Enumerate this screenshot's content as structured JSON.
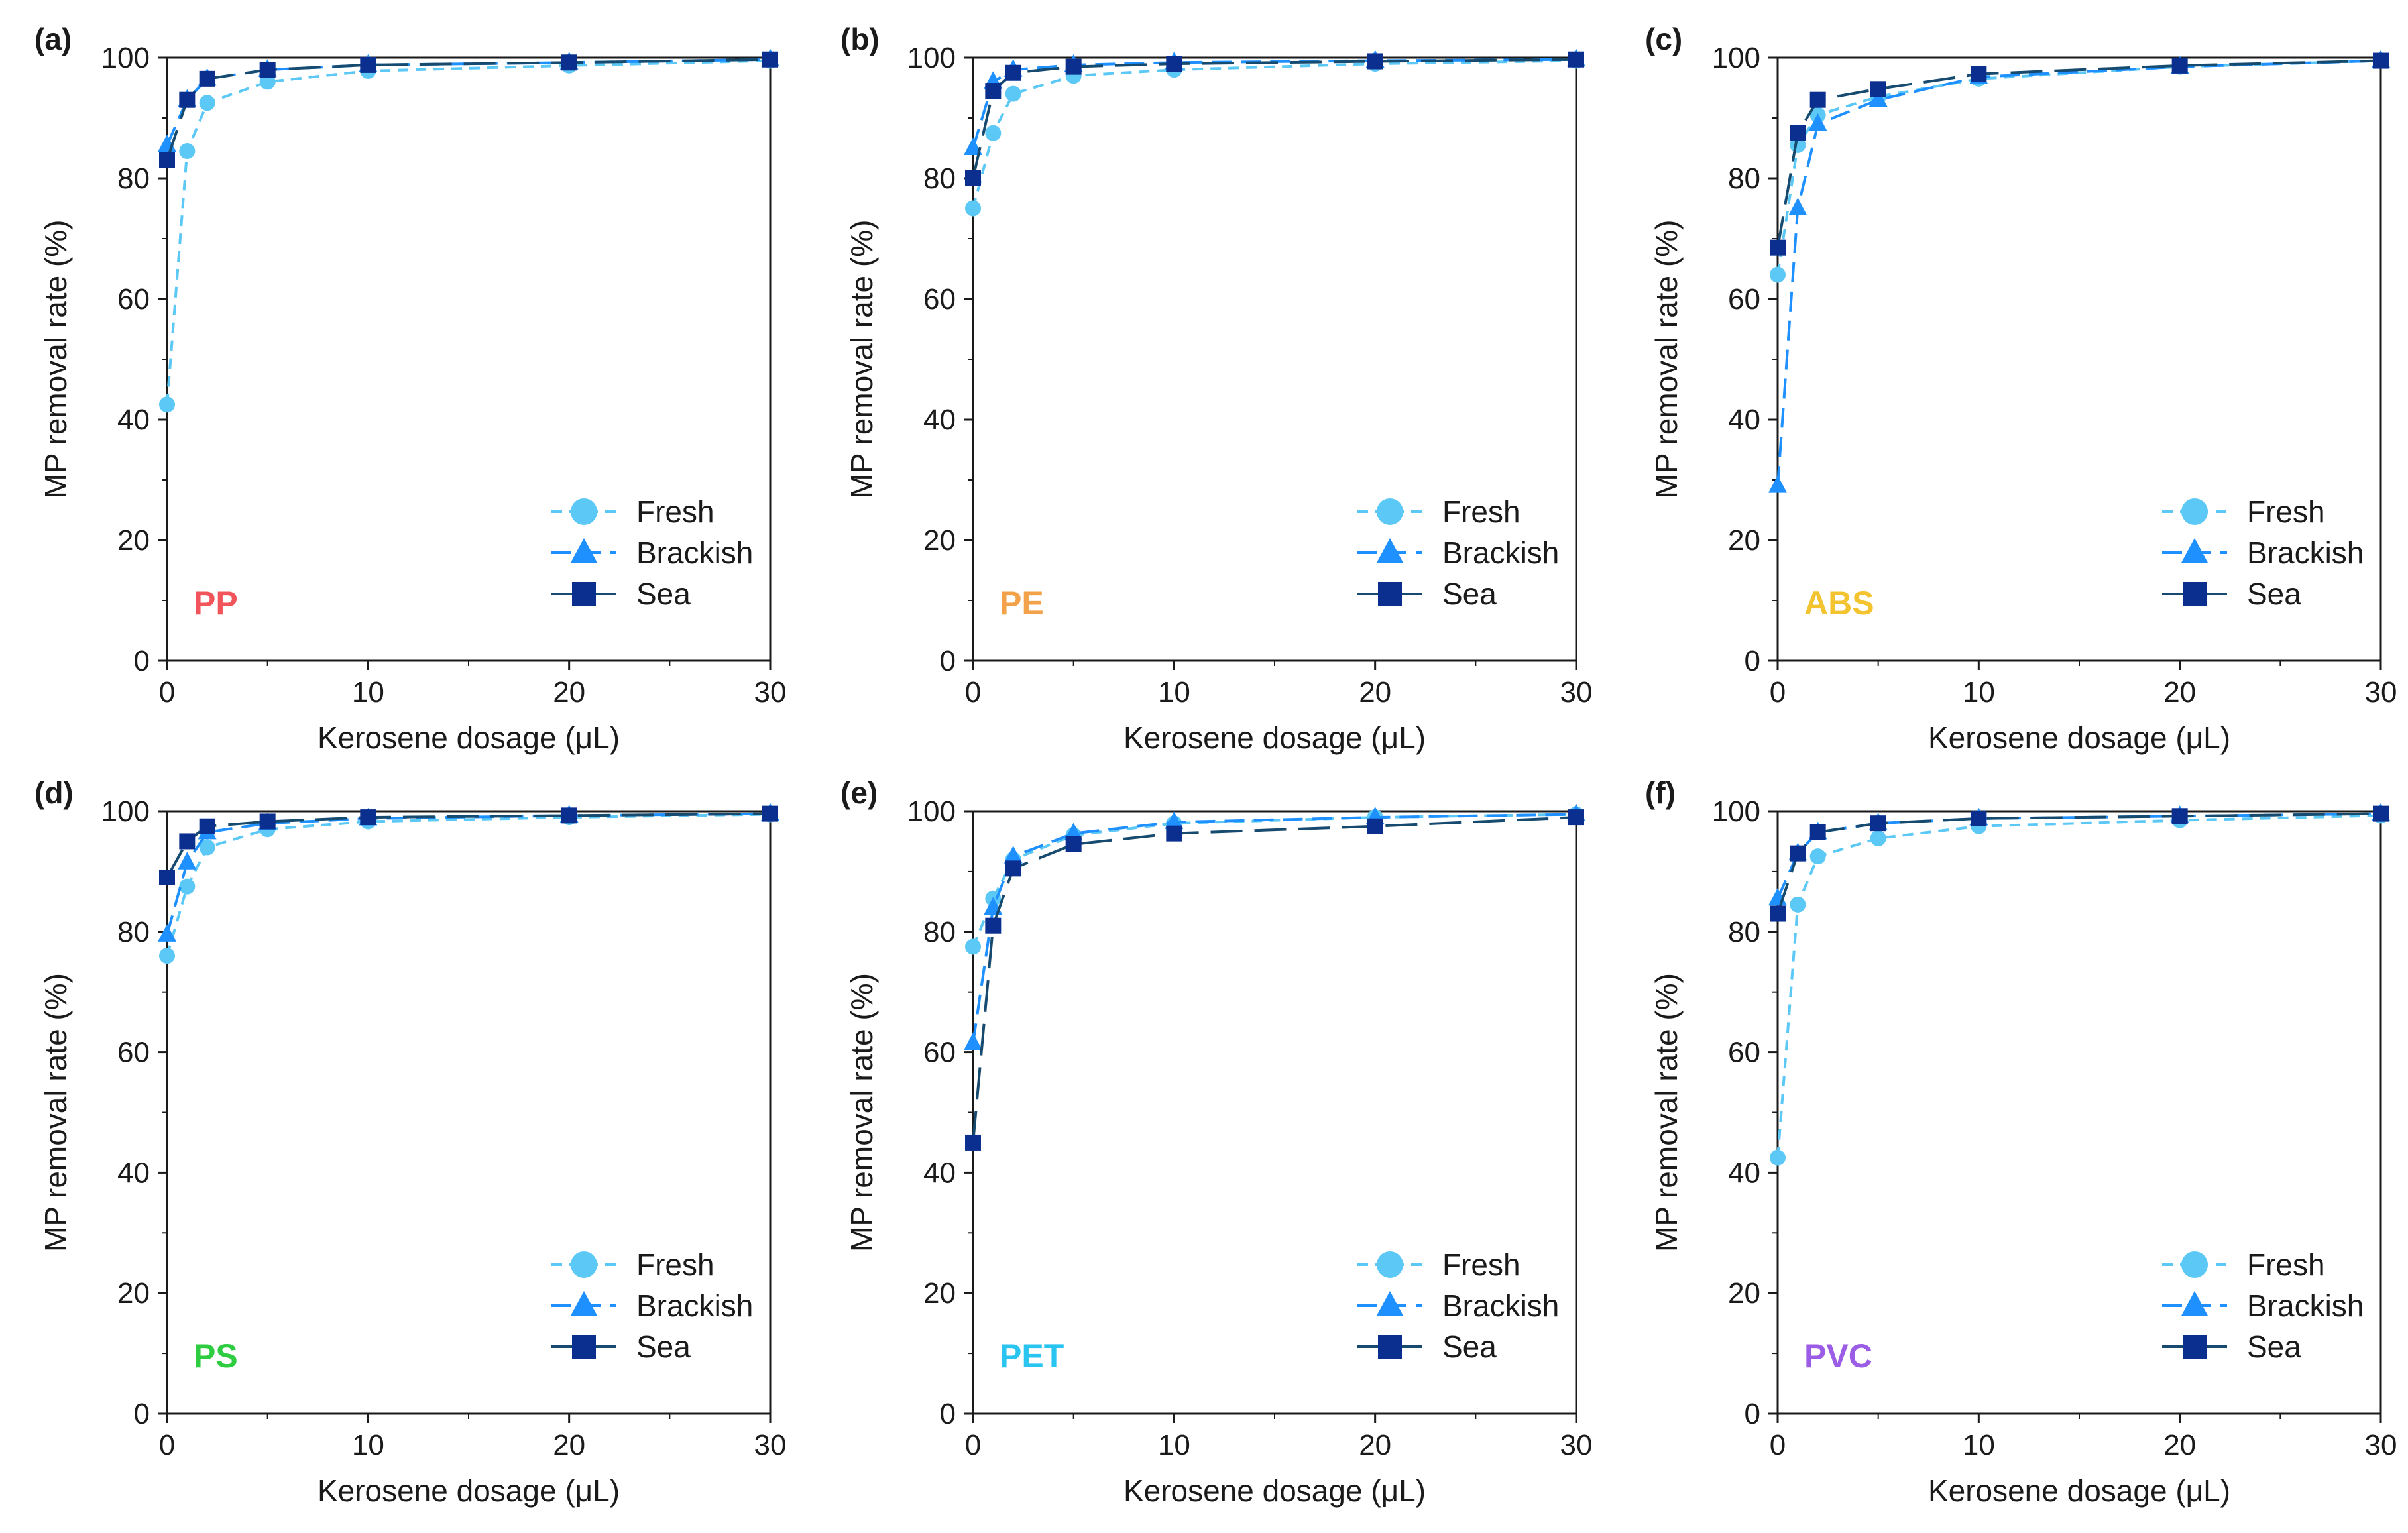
{
  "figure": {
    "series_styles": [
      {
        "name": "Fresh",
        "color": "#5bc8f5",
        "marker": "circle",
        "dash": "short"
      },
      {
        "name": "Brackish",
        "color": "#1e90ff",
        "marker": "triangle",
        "dash": "medium"
      },
      {
        "name": "Sea",
        "color": "#0b2f8f",
        "marker": "square",
        "dash": "long",
        "line_color": "#164a6e"
      }
    ]
  },
  "chart_data": [
    {
      "type": "line",
      "panel_label": "(a)",
      "polymer": "PP",
      "polymer_color": "#f2545b",
      "xlabel": "Kerosene dosage (μL)",
      "ylabel": "MP removal rate (%)",
      "xlim": [
        0,
        30
      ],
      "ylim": [
        0,
        100
      ],
      "xticks": [
        "0",
        "10",
        "20",
        "30"
      ],
      "yticks": [
        "0",
        "20",
        "40",
        "60",
        "80",
        "100"
      ],
      "x": [
        0,
        1,
        2,
        5,
        10,
        20,
        30
      ],
      "legend": [
        "Fresh",
        "Brackish",
        "Sea"
      ],
      "legend_position": "bottom-right",
      "series": [
        {
          "name": "Fresh",
          "values": [
            42.5,
            84.5,
            92.5,
            96.0,
            97.8,
            98.7,
            99.5
          ]
        },
        {
          "name": "Brackish",
          "values": [
            85.5,
            93.0,
            96.5,
            98.0,
            98.8,
            99.2,
            99.7
          ]
        },
        {
          "name": "Sea",
          "values": [
            83.0,
            93.0,
            96.5,
            98.0,
            98.8,
            99.2,
            99.7
          ]
        }
      ]
    },
    {
      "type": "line",
      "panel_label": "(b)",
      "polymer": "PE",
      "polymer_color": "#f4a24a",
      "xlabel": "Kerosene dosage (μL)",
      "ylabel": "MP removal rate (%)",
      "xlim": [
        0,
        30
      ],
      "ylim": [
        0,
        100
      ],
      "xticks": [
        "0",
        "10",
        "20",
        "30"
      ],
      "yticks": [
        "0",
        "20",
        "40",
        "60",
        "80",
        "100"
      ],
      "x": [
        0,
        1,
        2,
        5,
        10,
        20,
        30
      ],
      "legend": [
        "Fresh",
        "Brackish",
        "Sea"
      ],
      "legend_position": "bottom-right",
      "series": [
        {
          "name": "Fresh",
          "values": [
            75.0,
            87.5,
            94.0,
            97.0,
            98.0,
            99.0,
            99.5
          ]
        },
        {
          "name": "Brackish",
          "values": [
            85.0,
            96.0,
            98.0,
            98.8,
            99.2,
            99.5,
            99.7
          ]
        },
        {
          "name": "Sea",
          "values": [
            80.0,
            94.5,
            97.5,
            98.5,
            99.0,
            99.4,
            99.7
          ]
        }
      ]
    },
    {
      "type": "line",
      "panel_label": "(c)",
      "polymer": "ABS",
      "polymer_color": "#f4c430",
      "xlabel": "Kerosene dosage (μL)",
      "ylabel": "MP removal rate (%)",
      "xlim": [
        0,
        30
      ],
      "ylim": [
        0,
        100
      ],
      "xticks": [
        "0",
        "10",
        "20",
        "30"
      ],
      "yticks": [
        "0",
        "20",
        "40",
        "60",
        "80",
        "100"
      ],
      "x": [
        0,
        1,
        2,
        5,
        10,
        20,
        30
      ],
      "legend": [
        "Fresh",
        "Brackish",
        "Sea"
      ],
      "legend_position": "bottom-right",
      "series": [
        {
          "name": "Fresh",
          "values": [
            64.0,
            85.5,
            90.5,
            93.5,
            96.5,
            98.5,
            99.5
          ]
        },
        {
          "name": "Brackish",
          "values": [
            29.0,
            75.0,
            89.0,
            93.0,
            96.8,
            98.5,
            99.5
          ]
        },
        {
          "name": "Sea",
          "values": [
            68.5,
            87.5,
            93.0,
            94.8,
            97.3,
            98.7,
            99.5
          ]
        }
      ]
    },
    {
      "type": "line",
      "panel_label": "(d)",
      "polymer": "PS",
      "polymer_color": "#2ecc40",
      "xlabel": "Kerosene dosage (μL)",
      "ylabel": "MP removal rate (%)",
      "xlim": [
        0,
        30
      ],
      "ylim": [
        0,
        100
      ],
      "xticks": [
        "0",
        "10",
        "20",
        "30"
      ],
      "yticks": [
        "0",
        "20",
        "40",
        "60",
        "80",
        "100"
      ],
      "x": [
        0,
        1,
        2,
        5,
        10,
        20,
        30
      ],
      "legend": [
        "Fresh",
        "Brackish",
        "Sea"
      ],
      "legend_position": "bottom-right",
      "series": [
        {
          "name": "Fresh",
          "values": [
            76.0,
            87.5,
            94.0,
            97.0,
            98.3,
            99.0,
            99.5
          ]
        },
        {
          "name": "Brackish",
          "values": [
            79.5,
            91.5,
            96.5,
            98.0,
            98.8,
            99.3,
            99.6
          ]
        },
        {
          "name": "Sea",
          "values": [
            89.0,
            95.0,
            97.5,
            98.3,
            99.0,
            99.3,
            99.6
          ]
        }
      ]
    },
    {
      "type": "line",
      "panel_label": "(e)",
      "polymer": "PET",
      "polymer_color": "#29c5f0",
      "xlabel": "Kerosene dosage (μL)",
      "ylabel": "MP removal rate (%)",
      "xlim": [
        0,
        30
      ],
      "ylim": [
        0,
        100
      ],
      "xticks": [
        "0",
        "10",
        "20",
        "30"
      ],
      "yticks": [
        "0",
        "20",
        "40",
        "60",
        "80",
        "100"
      ],
      "x": [
        0,
        1,
        2,
        5,
        10,
        20,
        30
      ],
      "legend": [
        "Fresh",
        "Brackish",
        "Sea"
      ],
      "legend_position": "bottom-right",
      "series": [
        {
          "name": "Fresh",
          "values": [
            77.5,
            85.5,
            92.0,
            96.0,
            98.0,
            99.0,
            99.5
          ]
        },
        {
          "name": "Brackish",
          "values": [
            61.5,
            84.0,
            92.5,
            96.3,
            98.2,
            99.0,
            99.5
          ]
        },
        {
          "name": "Sea",
          "values": [
            45.0,
            81.0,
            90.5,
            94.5,
            96.3,
            97.5,
            99.0
          ]
        }
      ]
    },
    {
      "type": "line",
      "panel_label": "(f)",
      "polymer": "PVC",
      "polymer_color": "#9b5de5",
      "xlabel": "Kerosene dosage (μL)",
      "ylabel": "MP removal rate (%)",
      "xlim": [
        0,
        30
      ],
      "ylim": [
        0,
        100
      ],
      "xticks": [
        "0",
        "10",
        "20",
        "30"
      ],
      "yticks": [
        "0",
        "20",
        "40",
        "60",
        "80",
        "100"
      ],
      "x": [
        0,
        1,
        2,
        5,
        10,
        20,
        30
      ],
      "legend": [
        "Fresh",
        "Brackish",
        "Sea"
      ],
      "legend_position": "bottom-right",
      "series": [
        {
          "name": "Fresh",
          "values": [
            42.5,
            84.5,
            92.5,
            95.5,
            97.5,
            98.5,
            99.3
          ]
        },
        {
          "name": "Brackish",
          "values": [
            85.5,
            93.0,
            96.5,
            98.0,
            98.8,
            99.2,
            99.6
          ]
        },
        {
          "name": "Sea",
          "values": [
            83.0,
            93.0,
            96.5,
            98.0,
            98.8,
            99.2,
            99.6
          ]
        }
      ]
    }
  ]
}
